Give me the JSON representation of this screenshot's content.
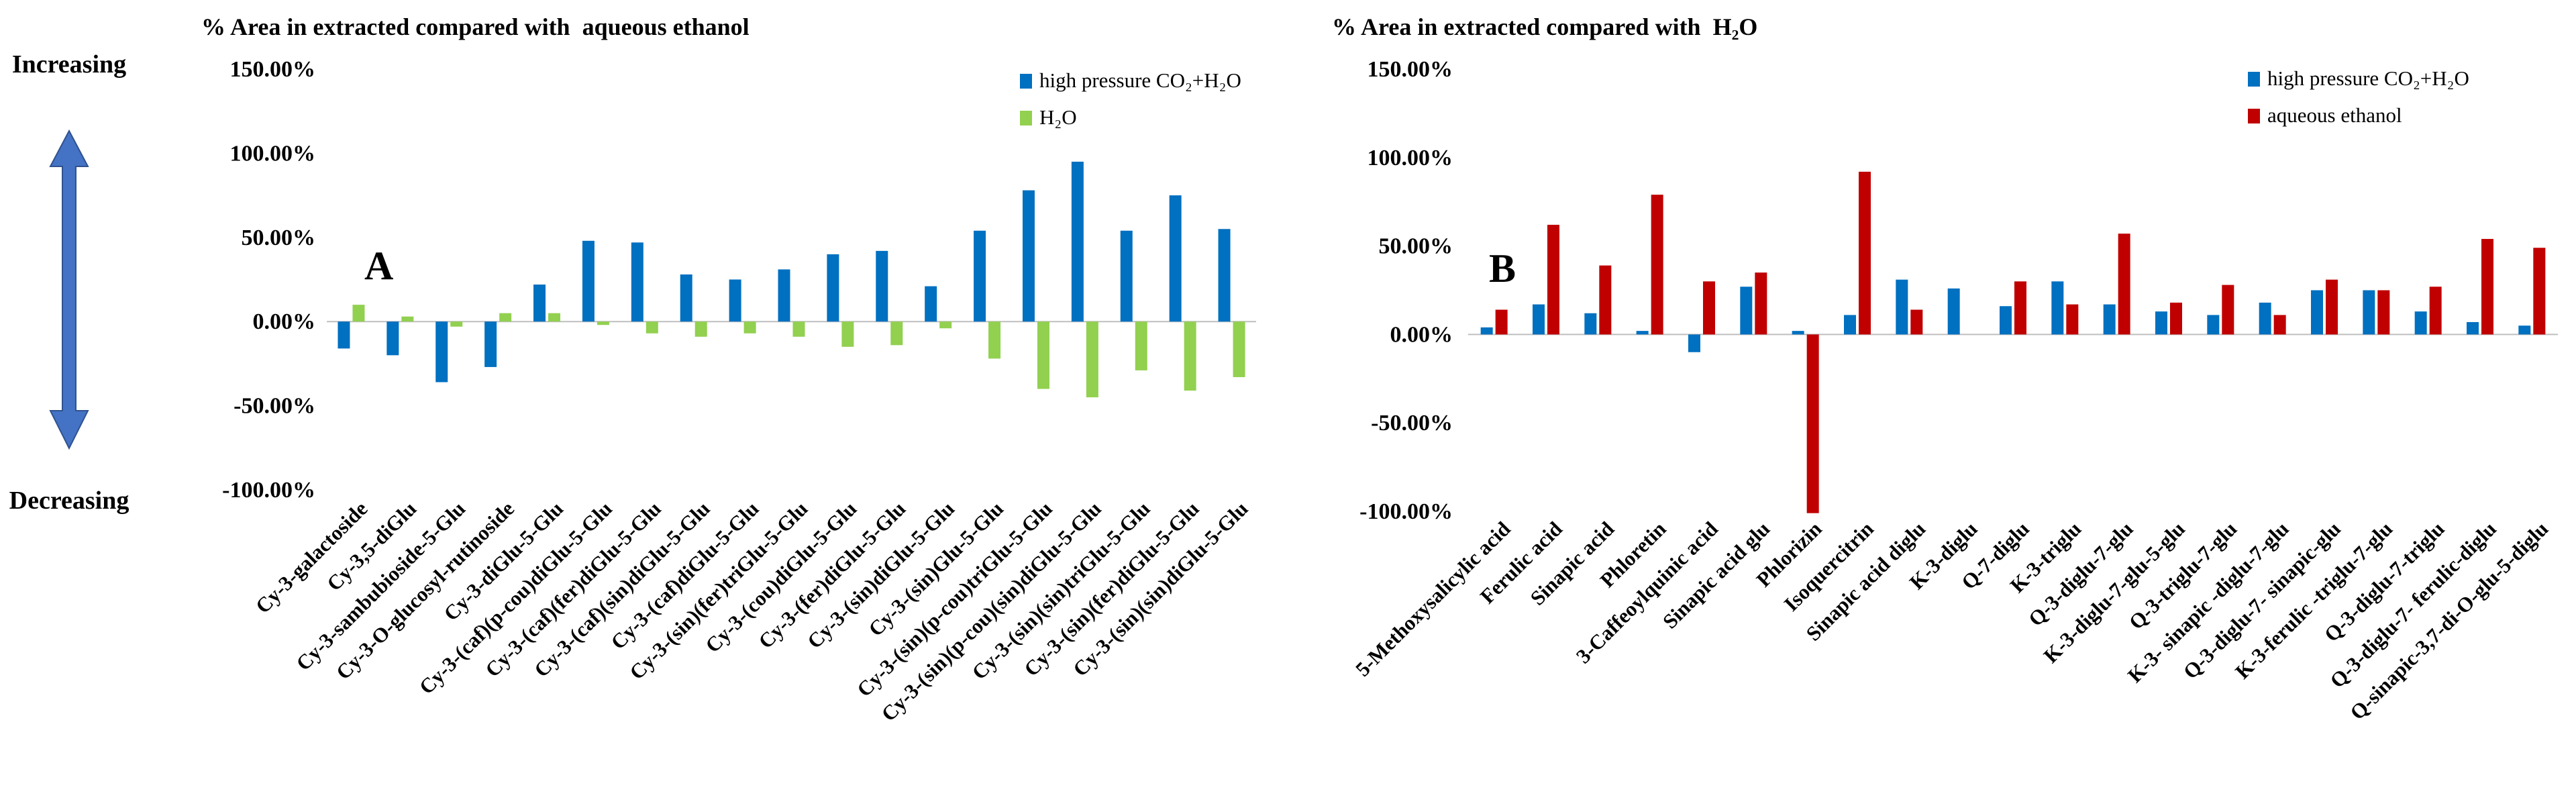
{
  "side_labels": {
    "increasing": "Increasing",
    "decreasing": "Decreasing"
  },
  "colors": {
    "blue": "#0070C0",
    "green": "#92D050",
    "red": "#C00000",
    "arrow_fill": "#4472C4",
    "arrow_stroke": "#2F528F"
  },
  "chart_data": [
    {
      "type": "bar",
      "panel_label": "A",
      "title": "% Area in extracted compared with  aqueous ethanol",
      "ylim": [
        -100,
        150
      ],
      "yticks": [
        -100,
        -50,
        0,
        50,
        100,
        150
      ],
      "ytick_labels": [
        "-100.00%",
        "-50.00%",
        "0.00%",
        "50.00%",
        "100.00%",
        "150.00%"
      ],
      "legend": "top-right",
      "categories": [
        "Cy-3-galactoside",
        "Cy-3,5-diGlu",
        "Cy-3-sambubioside-5-Glu",
        "Cy-3-O-glucosyl-rutinoside",
        "Cy-3-diGlu-5-Glu",
        "Cy-3-(caf)(p-cou)diGlu-5-Glu",
        "Cy-3-(caf)(fer)diGlu-5-Glu",
        "Cy-3-(caf)(sin)diGlu-5-Glu",
        "Cy-3-(caf)diGlu-5-Glu",
        "Cy-3-(sin)(fer)triGlu-5-Glu",
        "Cy-3-(cou)diGlu-5-Glu",
        "Cy-3-(fer)diGlu-5-Glu",
        "Cy-3-(sin)diGlu-5-Glu",
        "Cy-3-(sin)Glu-5-Glu",
        "Cy-3-(sin)(p-cou)triGlu-5-Glu",
        "Cy-3-(sin)(p-cou)(sin)diGlu-5-Glu",
        "Cy-3-(sin)(sin)triGlu-5-Glu",
        "Cy-3-(sin)(fer)diGlu-5-Glu",
        "Cy-3-(sin)(sin)diGlu-5-Glu"
      ],
      "series": [
        {
          "name": "high pressure CO₂+H₂O",
          "color": "#0070C0",
          "values": [
            -16,
            -20,
            -36,
            -27,
            22,
            48,
            47,
            28,
            25,
            31,
            40,
            42,
            21,
            54,
            78,
            95,
            54,
            75,
            55
          ]
        },
        {
          "name": "H₂O",
          "color": "#92D050",
          "values": [
            10,
            3,
            -3,
            5,
            5,
            -2,
            -7,
            -9,
            -7,
            -9,
            -15,
            -14,
            -4,
            -22,
            -40,
            -45,
            -29,
            -41,
            -33
          ]
        }
      ]
    },
    {
      "type": "bar",
      "panel_label": "B",
      "title": "% Area in extracted compared with  H₂O",
      "ylim": [
        -100,
        150
      ],
      "yticks": [
        -100,
        -50,
        0,
        50,
        100,
        150
      ],
      "ytick_labels": [
        "-100.00%",
        "-50.00%",
        "0.00%",
        "50.00%",
        "100.00%",
        "150.00%"
      ],
      "legend": "top-right",
      "categories": [
        "5-Methoxysalicylic acid",
        "Ferulic acid",
        "Sinapic acid",
        "Phloretin",
        "3-Caffeoylquinic acid",
        "Sinapic acid glu",
        "Phlorizin",
        "Isoquercitrin",
        "Sinapic acid diglu",
        "K-3-diglu",
        "Q-7-diglu",
        "K-3-triglu",
        "Q-3-diglu-7-glu",
        "K-3-diglu-7-glu-5-glu",
        "Q-3-triglu-7-glu",
        "K-3- sinapic -diglu-7-glu",
        "Q-3-diglu-7- sinapic-glu",
        "K-3-ferulic -triglu-7-glu",
        "Q-3-diglu-7-triglu",
        "Q-3-diglu-7- ferulic-diglu",
        "Q-sinapic-3,7-di-O-glu-5-diglu"
      ],
      "series": [
        {
          "name": "high pressure CO₂+H₂O",
          "color": "#0070C0",
          "values": [
            4,
            17,
            12,
            2,
            -10,
            27,
            2,
            11,
            31,
            26,
            16,
            30,
            17,
            13,
            11,
            18,
            25,
            25,
            13,
            7,
            5
          ]
        },
        {
          "name": "aqueous ethanol",
          "color": "#C00000",
          "values": [
            14,
            62,
            39,
            79,
            30,
            35,
            -101,
            92,
            14,
            0,
            30,
            17,
            57,
            18,
            28,
            11,
            31,
            25,
            27,
            54,
            49
          ]
        }
      ]
    }
  ]
}
